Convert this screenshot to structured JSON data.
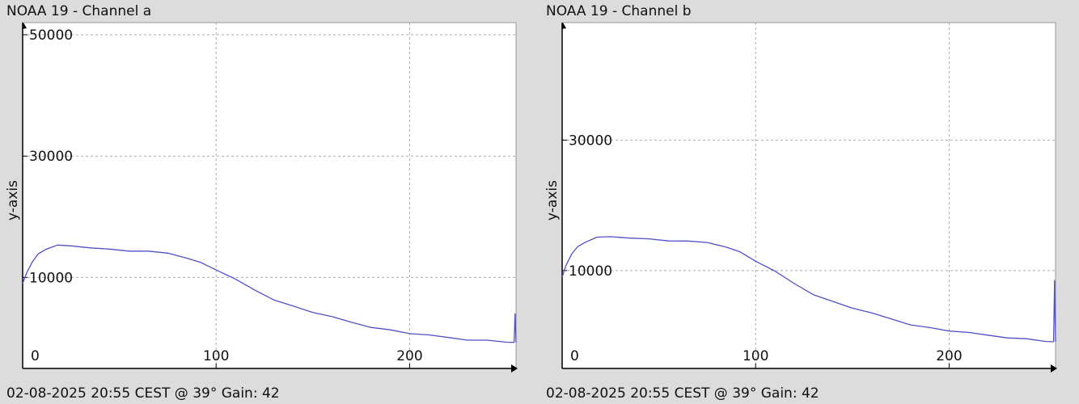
{
  "chart_data": [
    {
      "type": "line",
      "title": "NOAA 19 - Channel a",
      "ylabel": "y-axis",
      "footer": "02-08-2025 20:55 CEST @ 39° Gain: 42",
      "xlim": [
        0,
        255
      ],
      "ylim": [
        -5000,
        52000
      ],
      "xticks": [
        0,
        100,
        200
      ],
      "yticks": [
        10000,
        30000,
        50000
      ],
      "series": [
        {
          "color": "#5050c8",
          "x": [
            0,
            2,
            5,
            8,
            12,
            18,
            25,
            35,
            45,
            55,
            65,
            75,
            85,
            92,
            100,
            110,
            120,
            130,
            140,
            150,
            160,
            170,
            180,
            190,
            200,
            210,
            220,
            230,
            240,
            250,
            254,
            254.5,
            255
          ],
          "y": [
            9000,
            10700,
            12700,
            13800,
            14700,
            15200,
            15200,
            15000,
            14600,
            14400,
            14200,
            14000,
            13300,
            12400,
            11300,
            9600,
            7900,
            6400,
            5200,
            4300,
            3400,
            2600,
            1900,
            1300,
            800,
            400,
            100,
            -200,
            -400,
            -600,
            -700,
            4000,
            -700
          ]
        }
      ]
    },
    {
      "type": "line",
      "title": "NOAA 19 - Channel b",
      "ylabel": "y-axis",
      "footer": "02-08-2025 20:55 CEST @ 39° Gain: 42",
      "xlim": [
        0,
        255
      ],
      "ylim": [
        -5000,
        48000
      ],
      "xticks": [
        0,
        100,
        200
      ],
      "yticks": [
        10000,
        30000
      ],
      "series": [
        {
          "color": "#5050c8",
          "x": [
            0,
            2,
            5,
            8,
            12,
            18,
            25,
            35,
            45,
            55,
            65,
            75,
            85,
            92,
            100,
            110,
            120,
            130,
            140,
            150,
            160,
            170,
            180,
            190,
            200,
            210,
            220,
            230,
            240,
            250,
            254,
            254.5,
            255
          ],
          "y": [
            9000,
            10800,
            12700,
            13600,
            14400,
            15000,
            15200,
            15100,
            14800,
            14600,
            14400,
            14300,
            13700,
            12800,
            11500,
            9800,
            8000,
            6400,
            5200,
            4300,
            3400,
            2600,
            1800,
            1200,
            800,
            400,
            100,
            -200,
            -500,
            -800,
            -900,
            8500,
            -900
          ]
        }
      ]
    }
  ]
}
